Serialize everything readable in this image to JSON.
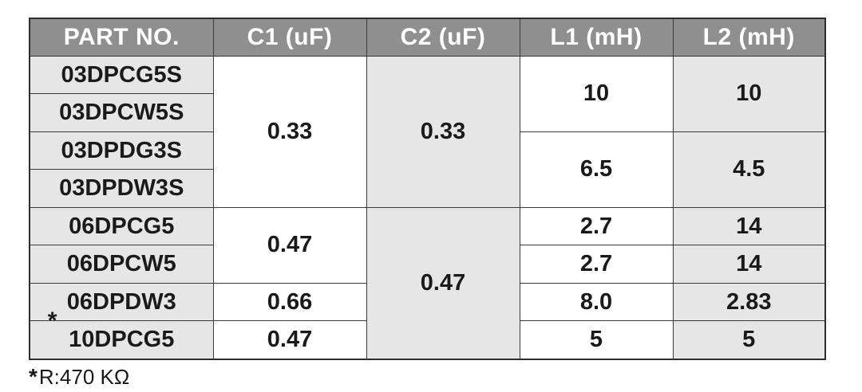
{
  "headers": [
    "PART  NO.",
    "C1 (uF)",
    "C2 (uF)",
    "L1 (mH)",
    "L2 (mH)"
  ],
  "rows": [
    {
      "part": "03DPCG5S"
    },
    {
      "part": "03DPCW5S"
    },
    {
      "part": "03DPDG3S"
    },
    {
      "part": "03DPDW3S"
    },
    {
      "part": "06DPCG5"
    },
    {
      "part": "06DPCW5"
    },
    {
      "part": "06DPDW3",
      "marker": "*"
    },
    {
      "part": "10DPCG5"
    }
  ],
  "c1": [
    "0.33",
    "0.47",
    "0.66",
    "0.47"
  ],
  "c2": [
    "0.33",
    "0.47"
  ],
  "l1": [
    "10",
    "6.5",
    "2.7",
    "2.7",
    "8.0",
    "5"
  ],
  "l2": [
    "10",
    "4.5",
    "14",
    "14",
    "2.83",
    "5"
  ],
  "note": {
    "marker": "*",
    "text": "R:470 KΩ"
  },
  "colors": {
    "header_bg": "#8f8f8f",
    "shade": "#e6e6e6",
    "border": "#3a3a3a"
  }
}
